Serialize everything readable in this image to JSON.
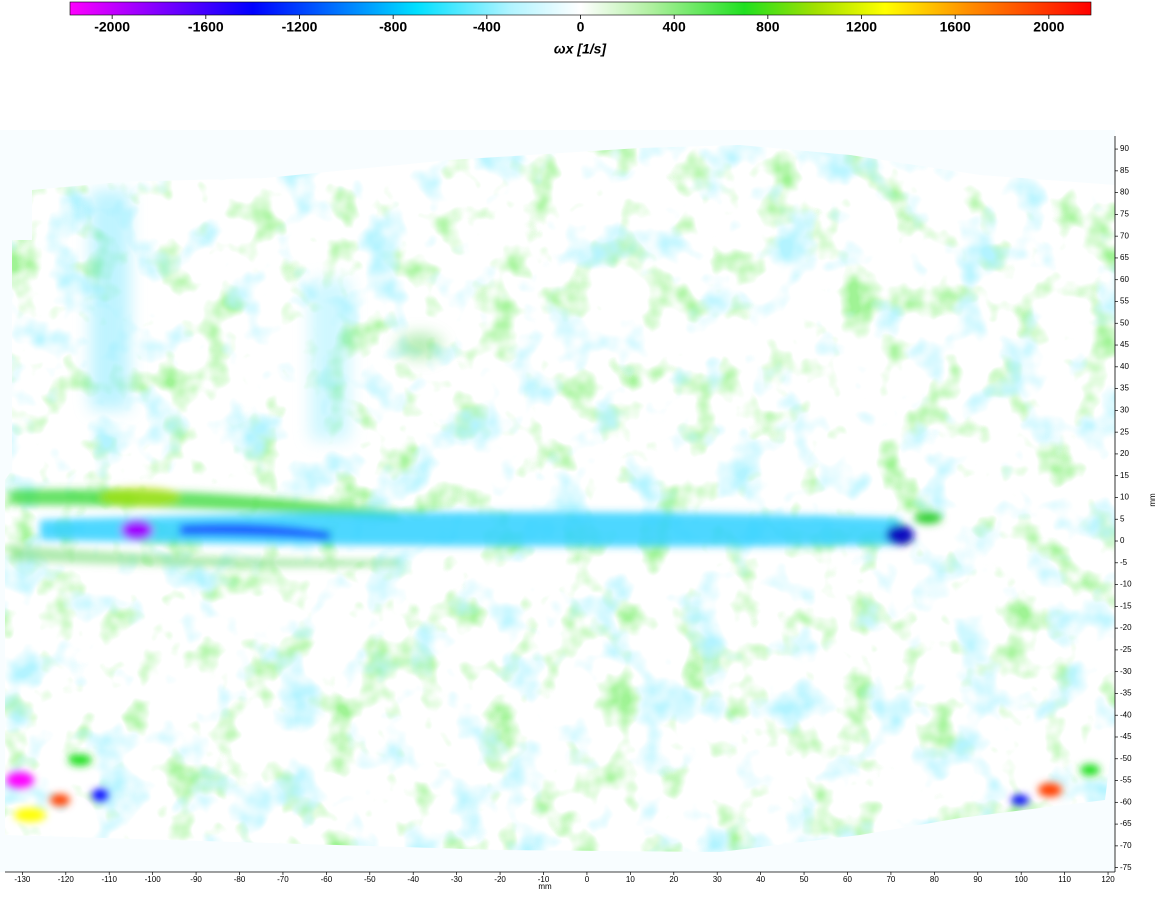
{
  "chart_data": {
    "type": "heatmap",
    "colorbar": {
      "label": "ωx  [1/s]",
      "clim": [
        -2180,
        2180
      ],
      "ticks": [
        -2000,
        -1600,
        -1200,
        -800,
        -400,
        0,
        400,
        800,
        1200,
        1600,
        2000
      ],
      "colormap": [
        {
          "value": -2180,
          "color": "#ff00ff"
        },
        {
          "value": -1800,
          "color": "#8000ff"
        },
        {
          "value": -1400,
          "color": "#0000ff"
        },
        {
          "value": -1000,
          "color": "#0080ff"
        },
        {
          "value": -700,
          "color": "#00e0ff"
        },
        {
          "value": -300,
          "color": "#b0f4ff"
        },
        {
          "value": 0,
          "color": "#ffffff"
        },
        {
          "value": 300,
          "color": "#b0f0a0"
        },
        {
          "value": 700,
          "color": "#20e020"
        },
        {
          "value": 1000,
          "color": "#a0e000"
        },
        {
          "value": 1300,
          "color": "#ffff00"
        },
        {
          "value": 1650,
          "color": "#ff9000"
        },
        {
          "value": 2180,
          "color": "#ff0000"
        }
      ]
    },
    "xlabel": "mm",
    "ylabel": "mm",
    "xlim": [
      -134,
      121.6
    ],
    "ylim": [
      -76,
      93
    ],
    "xticks": [
      -130,
      -120,
      -110,
      -100,
      -90,
      -80,
      -70,
      -60,
      -50,
      -40,
      -30,
      -20,
      -10,
      0,
      10,
      20,
      30,
      40,
      50,
      60,
      70,
      80,
      90,
      100,
      110,
      120
    ],
    "yticks": [
      -75,
      -70,
      -65,
      -60,
      -55,
      -50,
      -45,
      -40,
      -35,
      -30,
      -25,
      -20,
      -15,
      -10,
      -5,
      0,
      5,
      10,
      15,
      20,
      25,
      30,
      35,
      40,
      45,
      50,
      55,
      60,
      65,
      70,
      75,
      80,
      85,
      90
    ]
  }
}
